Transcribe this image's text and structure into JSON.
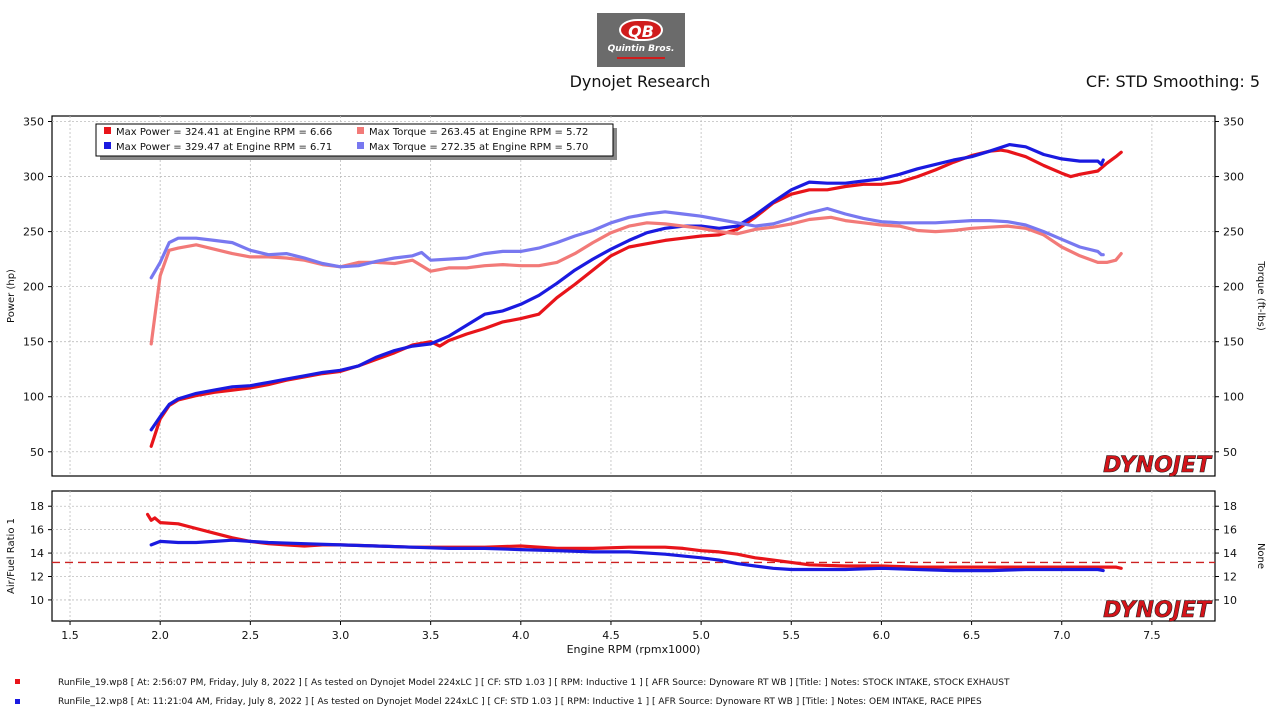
{
  "header": {
    "logo_text": "QB",
    "logo_name": "Quintin Bros.",
    "title": "Dynojet Research",
    "cf_info": "CF: STD Smoothing: 5"
  },
  "brand_watermark": "DYNOJET",
  "colors": {
    "run19_power": "#e8141a",
    "run19_torque": "#f27a78",
    "run12_power": "#1a1ae0",
    "run12_torque": "#7878f0",
    "afr_ref": "#cc2222"
  },
  "legend": [
    {
      "text": "Max Power = 324.41 at Engine RPM = 6.66",
      "color": "#e8141a"
    },
    {
      "text": "Max Torque = 263.45 at Engine RPM = 5.72",
      "color": "#f27a78"
    },
    {
      "text": "Max Power = 329.47 at Engine RPM = 6.71",
      "color": "#1a1ae0"
    },
    {
      "text": "Max Torque = 272.35 at Engine RPM = 5.70",
      "color": "#7878f0"
    }
  ],
  "footer": [
    {
      "text": "RunFile_19.wp8 [ At: 2:56:07 PM, Friday, July 8, 2022 ] [ As tested on Dynojet Model 224xLC ] [ CF: STD 1.03 ] [ RPM: Inductive 1 ] [ AFR Source: Dynoware RT WB ] [Title: ]   Notes: STOCK INTAKE, STOCK EXHAUST",
      "color": "#e8141a"
    },
    {
      "text": "RunFile_12.wp8 [ At: 11:21:04 AM, Friday, July 8, 2022 ] [ As tested on Dynojet Model 224xLC ] [ CF: STD 1.03 ] [ RPM: Inductive 1 ] [ AFR Source: Dynoware RT WB ] [Title: ]   Notes: OEM INTAKE, RACE PIPES",
      "color": "#1a1ae0"
    }
  ],
  "chart_data": [
    {
      "type": "line",
      "xlabel": "",
      "ylabel": "Power (hp)",
      "y2label": "Torque (ft-lbs)",
      "xlim": [
        1.4,
        7.85
      ],
      "ylim": [
        28,
        355
      ],
      "y2lim": [
        28,
        355
      ],
      "y_ticks": [
        50,
        100,
        150,
        200,
        250,
        300,
        350
      ],
      "y2_ticks": [
        50,
        100,
        150,
        200,
        250,
        300,
        350
      ],
      "grid": true,
      "legend_position": "top-left",
      "series": [
        {
          "name": "",
          "axis": "left",
          "color": "#e8141a",
          "x": [
            1.95,
            2.0,
            2.05,
            2.1,
            2.2,
            2.3,
            2.4,
            2.5,
            2.6,
            2.7,
            2.8,
            2.9,
            3.0,
            3.1,
            3.2,
            3.3,
            3.4,
            3.5,
            3.55,
            3.6,
            3.7,
            3.8,
            3.9,
            4.0,
            4.1,
            4.2,
            4.3,
            4.4,
            4.5,
            4.6,
            4.7,
            4.8,
            4.9,
            5.0,
            5.1,
            5.2,
            5.3,
            5.4,
            5.5,
            5.6,
            5.7,
            5.8,
            5.9,
            6.0,
            6.1,
            6.2,
            6.3,
            6.4,
            6.5,
            6.6,
            6.66,
            6.7,
            6.8,
            6.9,
            7.0,
            7.05,
            7.1,
            7.2,
            7.25,
            7.3,
            7.33
          ],
          "y": [
            55,
            80,
            92,
            97,
            101,
            104,
            106,
            108,
            111,
            115,
            118,
            121,
            123,
            128,
            134,
            140,
            147,
            150,
            146,
            151,
            157,
            162,
            168,
            171,
            175,
            190,
            202,
            215,
            228,
            236,
            239,
            242,
            244,
            246,
            247,
            252,
            263,
            276,
            284,
            288,
            288,
            291,
            293,
            293,
            295,
            300,
            306,
            313,
            319,
            323,
            324,
            323,
            318,
            310,
            303,
            300,
            302,
            305,
            312,
            318,
            322
          ]
        },
        {
          "name": "",
          "axis": "left",
          "color": "#1a1ae0",
          "x": [
            1.95,
            2.0,
            2.05,
            2.1,
            2.2,
            2.3,
            2.4,
            2.5,
            2.6,
            2.7,
            2.8,
            2.9,
            3.0,
            3.1,
            3.2,
            3.3,
            3.4,
            3.5,
            3.6,
            3.7,
            3.8,
            3.9,
            4.0,
            4.1,
            4.2,
            4.3,
            4.4,
            4.5,
            4.6,
            4.7,
            4.8,
            4.9,
            5.0,
            5.1,
            5.2,
            5.3,
            5.4,
            5.5,
            5.6,
            5.7,
            5.8,
            5.9,
            6.0,
            6.1,
            6.2,
            6.3,
            6.4,
            6.5,
            6.6,
            6.71,
            6.8,
            6.9,
            7.0,
            7.1,
            7.2,
            7.22,
            7.23
          ],
          "y": [
            70,
            82,
            93,
            98,
            103,
            106,
            109,
            110,
            113,
            116,
            119,
            122,
            124,
            128,
            136,
            142,
            146,
            148,
            155,
            165,
            175,
            178,
            184,
            192,
            203,
            215,
            225,
            234,
            242,
            249,
            253,
            255,
            255,
            253,
            255,
            265,
            277,
            288,
            295,
            294,
            294,
            296,
            298,
            302,
            307,
            311,
            315,
            318,
            323,
            329,
            327,
            320,
            316,
            314,
            314,
            311,
            315
          ]
        },
        {
          "name": "",
          "axis": "right",
          "color": "#f27a78",
          "x": [
            1.95,
            2.0,
            2.05,
            2.1,
            2.2,
            2.3,
            2.4,
            2.5,
            2.6,
            2.7,
            2.8,
            2.9,
            3.0,
            3.1,
            3.2,
            3.3,
            3.4,
            3.5,
            3.6,
            3.7,
            3.8,
            3.9,
            4.0,
            4.1,
            4.2,
            4.3,
            4.4,
            4.5,
            4.6,
            4.7,
            4.8,
            4.9,
            5.0,
            5.1,
            5.2,
            5.3,
            5.4,
            5.5,
            5.6,
            5.72,
            5.8,
            5.9,
            6.0,
            6.1,
            6.2,
            6.3,
            6.4,
            6.5,
            6.6,
            6.7,
            6.8,
            6.9,
            7.0,
            7.1,
            7.2,
            7.25,
            7.3,
            7.33
          ],
          "y": [
            148,
            210,
            233,
            235,
            238,
            234,
            230,
            227,
            227,
            226,
            224,
            220,
            218,
            222,
            222,
            221,
            224,
            214,
            217,
            217,
            219,
            220,
            219,
            219,
            222,
            230,
            240,
            249,
            255,
            258,
            257,
            255,
            253,
            250,
            248,
            252,
            254,
            257,
            261,
            263,
            260,
            258,
            256,
            255,
            251,
            250,
            251,
            253,
            254,
            255,
            253,
            247,
            236,
            228,
            222,
            222,
            224,
            230
          ]
        },
        {
          "name": "",
          "axis": "right",
          "color": "#7878f0",
          "x": [
            1.95,
            2.0,
            2.05,
            2.1,
            2.2,
            2.3,
            2.4,
            2.5,
            2.6,
            2.7,
            2.8,
            2.9,
            3.0,
            3.1,
            3.2,
            3.3,
            3.4,
            3.45,
            3.5,
            3.6,
            3.7,
            3.8,
            3.9,
            4.0,
            4.1,
            4.2,
            4.3,
            4.4,
            4.5,
            4.6,
            4.7,
            4.8,
            4.9,
            5.0,
            5.1,
            5.2,
            5.3,
            5.4,
            5.5,
            5.6,
            5.7,
            5.8,
            5.9,
            6.0,
            6.1,
            6.2,
            6.3,
            6.4,
            6.5,
            6.6,
            6.7,
            6.8,
            6.9,
            7.0,
            7.1,
            7.2,
            7.22,
            7.23
          ],
          "y": [
            208,
            222,
            240,
            244,
            244,
            242,
            240,
            233,
            229,
            230,
            226,
            221,
            218,
            219,
            223,
            226,
            228,
            231,
            224,
            225,
            226,
            230,
            232,
            232,
            235,
            240,
            246,
            251,
            258,
            263,
            266,
            268,
            266,
            264,
            261,
            258,
            255,
            257,
            262,
            267,
            271,
            266,
            262,
            259,
            258,
            258,
            258,
            259,
            260,
            260,
            259,
            256,
            250,
            243,
            236,
            232,
            229,
            229
          ]
        }
      ]
    },
    {
      "type": "line",
      "xlabel": "Engine RPM (rpmx1000)",
      "ylabel": "Air/Fuel Ratio 1",
      "y2label": "None",
      "xlim": [
        1.4,
        7.85
      ],
      "ylim": [
        8.2,
        19.3
      ],
      "y_ticks": [
        10,
        12,
        14,
        16,
        18
      ],
      "y2_ticks": [
        10,
        12,
        14,
        16,
        18
      ],
      "x_ticks": [
        "1.5",
        "2.0",
        "2.5",
        "3.0",
        "3.5",
        "4.0",
        "4.5",
        "5.0",
        "5.5",
        "6.0",
        "6.5",
        "7.0",
        "7.5"
      ],
      "x_tick_values": [
        1.5,
        2.0,
        2.5,
        3.0,
        3.5,
        4.0,
        4.5,
        5.0,
        5.5,
        6.0,
        6.5,
        7.0,
        7.5
      ],
      "grid": true,
      "reference_line": 13.2,
      "series": [
        {
          "name": "",
          "color": "#e8141a",
          "x": [
            1.93,
            1.95,
            1.97,
            2.0,
            2.1,
            2.2,
            2.3,
            2.4,
            2.5,
            2.6,
            2.7,
            2.8,
            2.9,
            3.0,
            3.2,
            3.4,
            3.6,
            3.8,
            4.0,
            4.2,
            4.4,
            4.6,
            4.8,
            4.9,
            5.0,
            5.1,
            5.2,
            5.3,
            5.4,
            5.5,
            5.6,
            5.8,
            6.0,
            6.2,
            6.4,
            6.6,
            6.8,
            7.0,
            7.2,
            7.3,
            7.33
          ],
          "y": [
            17.3,
            16.8,
            17.0,
            16.6,
            16.5,
            16.1,
            15.7,
            15.3,
            15.0,
            14.8,
            14.7,
            14.6,
            14.7,
            14.7,
            14.6,
            14.5,
            14.5,
            14.5,
            14.6,
            14.4,
            14.4,
            14.5,
            14.5,
            14.4,
            14.2,
            14.1,
            13.9,
            13.6,
            13.4,
            13.2,
            13.0,
            12.9,
            12.9,
            12.8,
            12.8,
            12.8,
            12.8,
            12.8,
            12.8,
            12.8,
            12.7
          ]
        },
        {
          "name": "",
          "color": "#1a1ae0",
          "x": [
            1.95,
            2.0,
            2.1,
            2.2,
            2.3,
            2.4,
            2.5,
            2.6,
            2.8,
            3.0,
            3.2,
            3.4,
            3.6,
            3.8,
            4.0,
            4.2,
            4.4,
            4.6,
            4.8,
            5.0,
            5.1,
            5.2,
            5.3,
            5.4,
            5.5,
            5.6,
            5.8,
            6.0,
            6.2,
            6.4,
            6.6,
            6.8,
            7.0,
            7.2,
            7.23
          ],
          "y": [
            14.7,
            15.0,
            14.9,
            14.9,
            15.0,
            15.1,
            15.0,
            14.9,
            14.8,
            14.7,
            14.6,
            14.5,
            14.4,
            14.4,
            14.3,
            14.2,
            14.1,
            14.1,
            13.9,
            13.6,
            13.4,
            13.1,
            12.9,
            12.7,
            12.6,
            12.6,
            12.6,
            12.7,
            12.6,
            12.5,
            12.5,
            12.6,
            12.6,
            12.6,
            12.5
          ]
        }
      ]
    }
  ]
}
